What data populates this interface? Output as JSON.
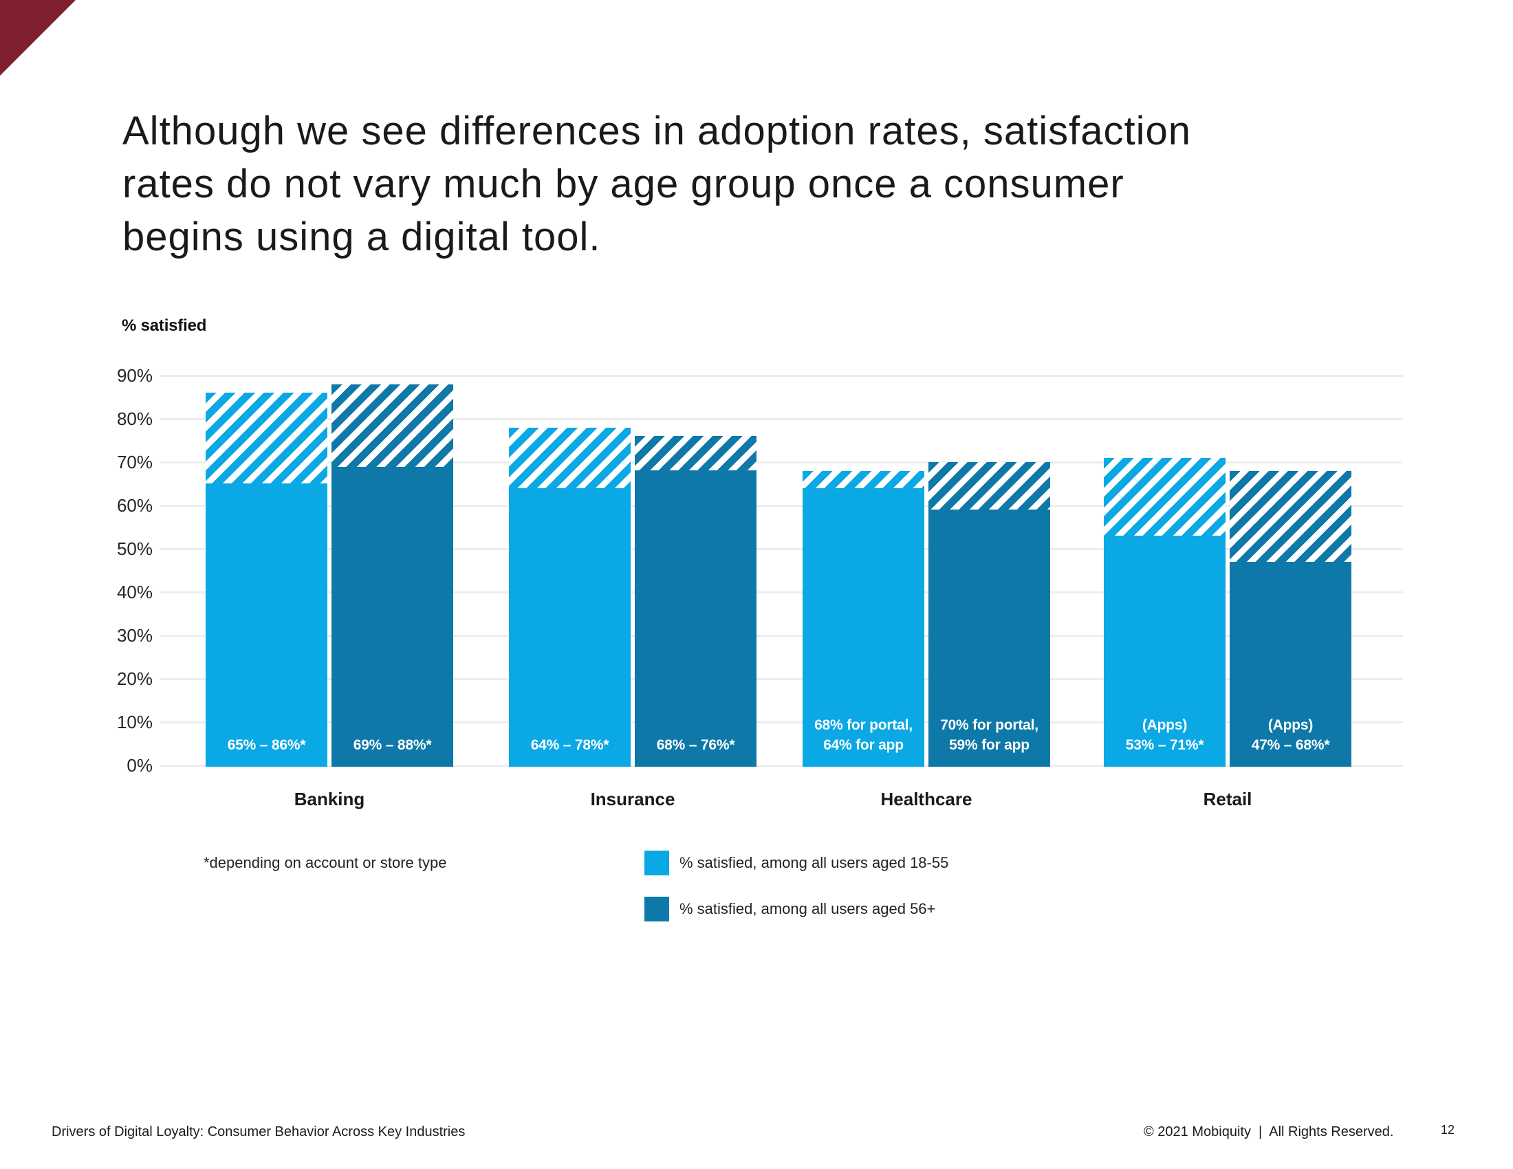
{
  "slide": {
    "title": "Although we see differences in adoption rates, satisfaction\nrates do not vary much by age group once a consumer\nbegins using a digital tool.",
    "footnote": "*depending on account or store type",
    "footer_left": "Drivers of Digital Loyalty: Consumer Behavior Across Key Industries",
    "footer_right": "© 2021 Mobiquity  |  All Rights Reserved.",
    "page_number": "12"
  },
  "colors": {
    "accent_light_blue": "#0AA8E4",
    "accent_dark_blue": "#0E78A9",
    "gridline": "#EDEDED",
    "corner_accent": "#7E202D",
    "bar_label_text": "#FFFFFF"
  },
  "chart_data": {
    "type": "bar",
    "title": "",
    "ylabel": "% satisfied",
    "xlabel": "",
    "ylim": [
      0,
      90
    ],
    "grid": true,
    "legend_position": "bottom-center",
    "yticks": [
      "0%",
      "10%",
      "20%",
      "30%",
      "40%",
      "50%",
      "60%",
      "70%",
      "80%",
      "90%"
    ],
    "categories": [
      "Banking",
      "Insurance",
      "Healthcare",
      "Retail"
    ],
    "series": [
      {
        "name": "% satisfied, among all users aged 18-55",
        "color": "#0AA8E4",
        "solid_values": [
          65,
          64,
          64,
          53
        ],
        "range_top_values": [
          86,
          78,
          68,
          71
        ],
        "bar_labels": [
          "65% – 86%*",
          "64% – 78%*",
          "68% for portal,\n64% for app",
          "(Apps)\n53% – 71%*"
        ]
      },
      {
        "name": "% satisfied, among all users aged 56+",
        "color": "#0E78A9",
        "solid_values": [
          69,
          68,
          59,
          47
        ],
        "range_top_values": [
          88,
          76,
          70,
          68
        ],
        "bar_labels": [
          "69% – 88%*",
          "68% – 76%*",
          "70% for portal,\n59% for app",
          "(Apps)\n47% – 68%*"
        ]
      }
    ]
  }
}
